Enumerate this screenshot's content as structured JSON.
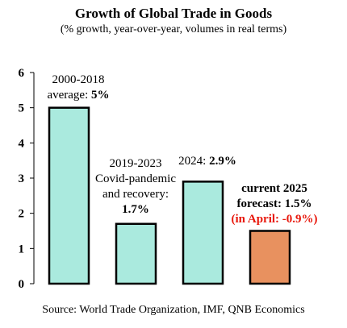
{
  "chart_data": {
    "type": "bar",
    "title": "Growth of Global Trade in Goods",
    "subtitle": "(% growth, year-over-year, volumes in real terms)",
    "source": "Source: World Trade Organization, IMF, QNB Economics",
    "xlabel": "",
    "ylabel": "",
    "ylim": [
      0,
      6
    ],
    "yticks": [
      0,
      1,
      2,
      3,
      4,
      5,
      6
    ],
    "grid": false,
    "values": [
      5,
      1.7,
      2.9,
      1.5
    ],
    "colors": [
      "#aaeade",
      "#aaeade",
      "#aaeade",
      "#e8915f"
    ],
    "bar_labels": [
      [
        {
          "t": "2000-2018",
          "b": false
        },
        {
          "t": "average:  ",
          "b": false,
          "t2": "5%",
          "b2": true
        }
      ],
      [
        {
          "t": "2019-2023",
          "b": false
        },
        {
          "t": "Covid-pandemic",
          "b": false
        },
        {
          "t": "and recovery:",
          "b": false
        },
        {
          "t": "1.7%",
          "b": true
        }
      ],
      [
        {
          "t": "2024: ",
          "b": false,
          "t2": "2.9%",
          "b2": true
        }
      ],
      [
        {
          "t": "current 2025",
          "b": true
        },
        {
          "t": "forecast: 1.5%",
          "b": true
        },
        {
          "t": "(in April: -0.9%)",
          "b": true,
          "color": "#e8180c"
        }
      ]
    ]
  }
}
